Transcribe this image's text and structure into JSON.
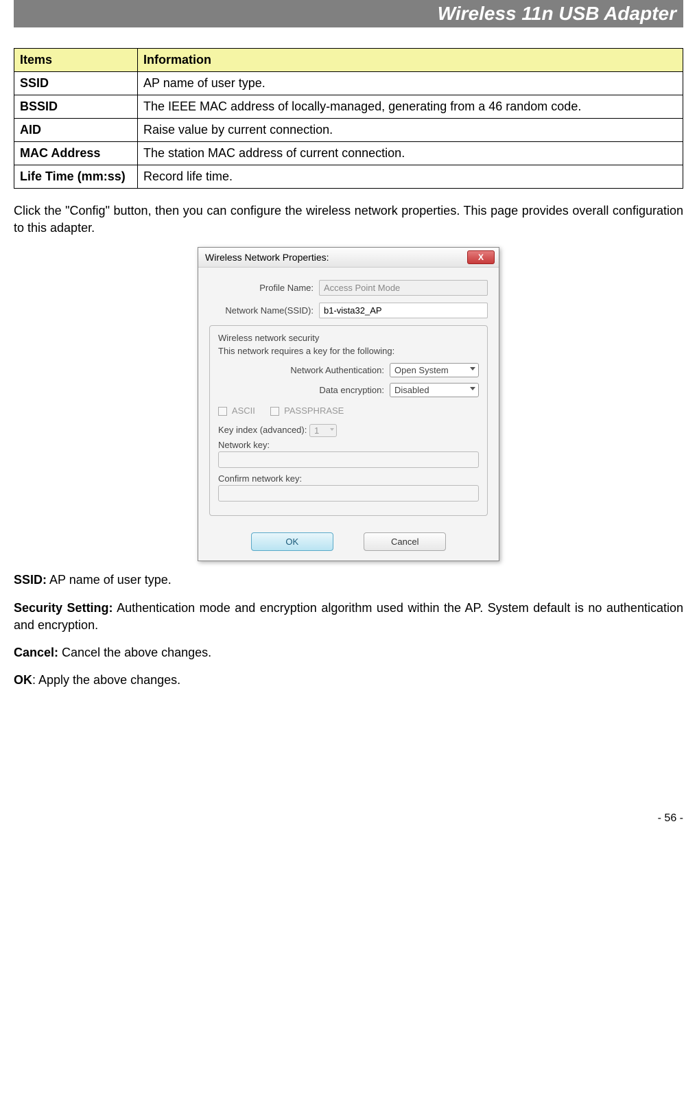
{
  "header": {
    "title": "Wireless 11n USB Adapter"
  },
  "table": {
    "header_items": "Items",
    "header_info": "Information",
    "rows": [
      {
        "item": "SSID",
        "info": "AP name of user type."
      },
      {
        "item": "BSSID",
        "info": "The IEEE MAC address of locally-managed, generating from a 46 random code."
      },
      {
        "item": "AID",
        "info": "Raise value by current connection."
      },
      {
        "item": "MAC Address",
        "info": "The station MAC address of current connection."
      },
      {
        "item": "Life Time (mm:ss)",
        "info": "Record life time."
      }
    ]
  },
  "intro_text": "Click the \"Config\" button, then you can configure the wireless network properties. This page provides overall configuration to this adapter.",
  "dialog": {
    "title": "Wireless Network Properties:",
    "close": "X",
    "profile_label": "Profile Name:",
    "profile_value": "Access Point Mode",
    "ssid_label": "Network Name(SSID):",
    "ssid_value": "b1-vista32_AP",
    "security_title": "Wireless network security",
    "security_sub": "This network requires a key for the following:",
    "auth_label": "Network Authentication:",
    "auth_value": "Open System",
    "enc_label": "Data encryption:",
    "enc_value": "Disabled",
    "ascii": "ASCII",
    "passphrase": "PASSPHRASE",
    "keyidx_label": "Key index (advanced):",
    "keyidx_value": "1",
    "nkey_label": "Network key:",
    "cnkey_label": "Confirm network key:",
    "ok": "OK",
    "cancel": "Cancel"
  },
  "defs": {
    "ssid_label": "SSID:",
    "ssid_text": " AP name of user type.",
    "sec_label": "Security Setting:",
    "sec_text": " Authentication mode and encryption algorithm used within the AP. System default is no authentication and encryption.",
    "cancel_label": "Cancel:",
    "cancel_text": " Cancel the above changes.",
    "ok_label": "OK",
    "ok_text": ": Apply the above changes."
  },
  "page_number": "- 56 -",
  "colors": {
    "header_bg": "#808080",
    "table_header_bg": "#f5f5a5",
    "ok_btn_bg": "#b9e4f2",
    "close_btn_bg": "#c73a3a"
  }
}
